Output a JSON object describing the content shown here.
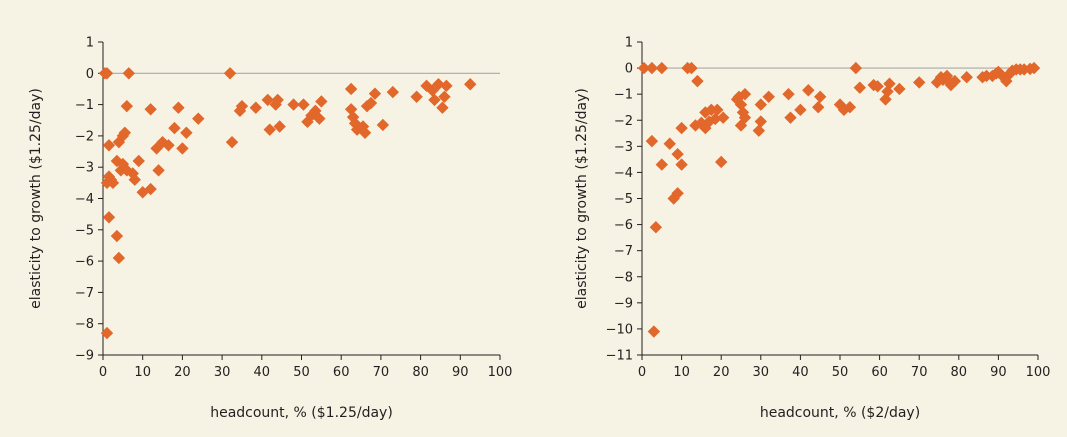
{
  "colors": {
    "background": "#f7f3e4",
    "marker": "#e1672a",
    "axis": "#231f20",
    "zero_line": "#a8a8a8"
  },
  "chart_data": [
    {
      "type": "scatter",
      "marker": "diamond",
      "xlabel": "headcount, % ($1.25/day)",
      "ylabel": "elasticity to growth ($1.25/day)",
      "xlim": [
        0,
        100
      ],
      "ylim": [
        -9,
        1
      ],
      "x_ticks": [
        "0",
        "10",
        "20",
        "30",
        "40",
        "50",
        "60",
        "70",
        "80",
        "90",
        "100"
      ],
      "y_ticks": [
        "1",
        "0",
        "−1",
        "−2",
        "−3",
        "−4",
        "−5",
        "−6",
        "−7",
        "−8",
        "−9"
      ],
      "reference_line_y": 0,
      "points": [
        [
          0.5,
          0
        ],
        [
          1,
          0
        ],
        [
          6.5,
          0
        ],
        [
          32,
          0
        ],
        [
          1,
          -8.3
        ],
        [
          1.5,
          -4.6
        ],
        [
          3.5,
          -5.2
        ],
        [
          4,
          -5.9
        ],
        [
          1,
          -3.5
        ],
        [
          1.5,
          -3.3
        ],
        [
          2,
          -3.4
        ],
        [
          2.5,
          -3.5
        ],
        [
          1.5,
          -2.3
        ],
        [
          3.5,
          -2.8
        ],
        [
          4.5,
          -3.1
        ],
        [
          5,
          -2.9
        ],
        [
          4,
          -2.2
        ],
        [
          5,
          -2.0
        ],
        [
          5.5,
          -1.9
        ],
        [
          6,
          -1.05
        ],
        [
          6,
          -3.1
        ],
        [
          7.5,
          -3.2
        ],
        [
          8,
          -3.4
        ],
        [
          9,
          -2.8
        ],
        [
          10,
          -3.8
        ],
        [
          12,
          -3.7
        ],
        [
          14,
          -3.1
        ],
        [
          12,
          -1.15
        ],
        [
          13.5,
          -2.4
        ],
        [
          15,
          -2.2
        ],
        [
          16.5,
          -2.3
        ],
        [
          18,
          -1.75
        ],
        [
          19,
          -1.1
        ],
        [
          20,
          -2.4
        ],
        [
          21,
          -1.9
        ],
        [
          24,
          -1.45
        ],
        [
          32.5,
          -2.2
        ],
        [
          34.5,
          -1.2
        ],
        [
          35,
          -1.05
        ],
        [
          38.5,
          -1.1
        ],
        [
          41.5,
          -0.85
        ],
        [
          42,
          -1.8
        ],
        [
          43.5,
          -1.0
        ],
        [
          44,
          -0.85
        ],
        [
          44.5,
          -1.7
        ],
        [
          48,
          -1.0
        ],
        [
          50.5,
          -1.0
        ],
        [
          51.5,
          -1.55
        ],
        [
          52.5,
          -1.35
        ],
        [
          53.5,
          -1.2
        ],
        [
          54.5,
          -1.45
        ],
        [
          55,
          -0.9
        ],
        [
          62.5,
          -0.5
        ],
        [
          62.5,
          -1.15
        ],
        [
          63,
          -1.4
        ],
        [
          63.5,
          -1.6
        ],
        [
          64,
          -1.8
        ],
        [
          65.5,
          -1.7
        ],
        [
          66,
          -1.9
        ],
        [
          66.5,
          -1.05
        ],
        [
          67.5,
          -0.95
        ],
        [
          68.5,
          -0.65
        ],
        [
          70.5,
          -1.65
        ],
        [
          73,
          -0.6
        ],
        [
          79,
          -0.75
        ],
        [
          81.5,
          -0.4
        ],
        [
          83,
          -0.55
        ],
        [
          83.5,
          -0.85
        ],
        [
          84.5,
          -0.35
        ],
        [
          85.5,
          -1.1
        ],
        [
          86,
          -0.75
        ],
        [
          86.5,
          -0.4
        ],
        [
          92.5,
          -0.35
        ]
      ]
    },
    {
      "type": "scatter",
      "marker": "diamond",
      "xlabel": "headcount, % ($2/day)",
      "ylabel": "elasticity to growth ($1.25/day)",
      "xlim": [
        0,
        100
      ],
      "ylim": [
        -11,
        1
      ],
      "x_ticks": [
        "0",
        "10",
        "20",
        "30",
        "40",
        "50",
        "60",
        "70",
        "80",
        "90",
        "100"
      ],
      "y_ticks": [
        "1",
        "0",
        "−1",
        "−2",
        "−3",
        "−4",
        "−5",
        "−6",
        "−7",
        "−8",
        "−9",
        "−10",
        "−11"
      ],
      "reference_line_y": 0,
      "points": [
        [
          0.5,
          0
        ],
        [
          2.5,
          0
        ],
        [
          5,
          0
        ],
        [
          11.5,
          0
        ],
        [
          12.5,
          0
        ],
        [
          54,
          0
        ],
        [
          3,
          -10.1
        ],
        [
          3.5,
          -6.1
        ],
        [
          2.5,
          -2.8
        ],
        [
          5,
          -3.7
        ],
        [
          7,
          -2.9
        ],
        [
          8,
          -5.0
        ],
        [
          9,
          -4.8
        ],
        [
          9,
          -3.3
        ],
        [
          10,
          -3.7
        ],
        [
          10,
          -2.3
        ],
        [
          14,
          -0.5
        ],
        [
          13.5,
          -2.2
        ],
        [
          15,
          -2.1
        ],
        [
          16,
          -2.3
        ],
        [
          16,
          -1.7
        ],
        [
          17,
          -2.05
        ],
        [
          17.5,
          -1.6
        ],
        [
          18.5,
          -1.95
        ],
        [
          19,
          -1.6
        ],
        [
          20,
          -3.6
        ],
        [
          20.5,
          -1.9
        ],
        [
          24,
          -1.2
        ],
        [
          24.5,
          -1.1
        ],
        [
          25,
          -1.4
        ],
        [
          25,
          -2.2
        ],
        [
          25.5,
          -1.7
        ],
        [
          26,
          -1.0
        ],
        [
          26,
          -1.9
        ],
        [
          29.5,
          -2.4
        ],
        [
          30,
          -2.05
        ],
        [
          30,
          -1.4
        ],
        [
          32,
          -1.1
        ],
        [
          37,
          -1.0
        ],
        [
          37.5,
          -1.9
        ],
        [
          40,
          -1.6
        ],
        [
          42,
          -0.85
        ],
        [
          44.5,
          -1.5
        ],
        [
          45,
          -1.1
        ],
        [
          50,
          -1.4
        ],
        [
          51,
          -1.6
        ],
        [
          52.5,
          -1.5
        ],
        [
          55,
          -0.75
        ],
        [
          58.5,
          -0.65
        ],
        [
          59.5,
          -0.7
        ],
        [
          61.5,
          -1.2
        ],
        [
          62,
          -0.9
        ],
        [
          62.5,
          -0.6
        ],
        [
          65,
          -0.8
        ],
        [
          70,
          -0.55
        ],
        [
          74.5,
          -0.55
        ],
        [
          75.5,
          -0.35
        ],
        [
          76,
          -0.45
        ],
        [
          77,
          -0.3
        ],
        [
          77.5,
          -0.5
        ],
        [
          78,
          -0.65
        ],
        [
          79,
          -0.5
        ],
        [
          82,
          -0.35
        ],
        [
          86,
          -0.35
        ],
        [
          87,
          -0.3
        ],
        [
          88.5,
          -0.3
        ],
        [
          89.5,
          -0.2
        ],
        [
          90,
          -0.15
        ],
        [
          91,
          -0.3
        ],
        [
          92,
          -0.5
        ],
        [
          93,
          -0.2
        ],
        [
          93.5,
          -0.1
        ],
        [
          94.5,
          -0.05
        ],
        [
          95.5,
          -0.05
        ],
        [
          96.5,
          -0.05
        ],
        [
          98,
          -0.03
        ],
        [
          99,
          0
        ]
      ]
    }
  ]
}
